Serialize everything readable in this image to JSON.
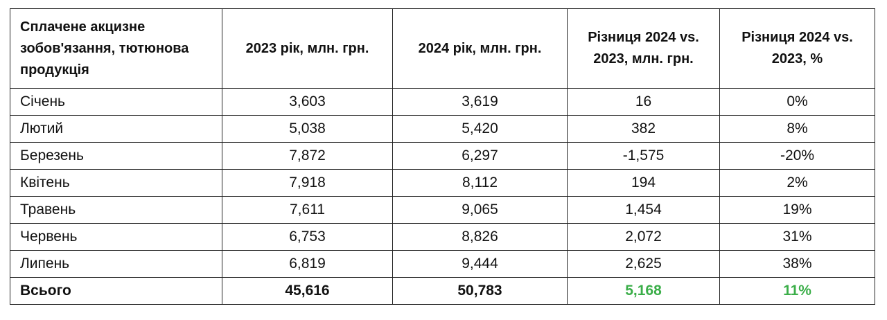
{
  "table": {
    "header": [
      "Сплачене акцизне зобов'язання, тютюнова продукція",
      "2023 рік, млн. грн.",
      "2024 рік,  млн. грн.",
      "Різниця 2024 vs. 2023, млн. грн.",
      "Різниця 2024 vs. 2023, %"
    ],
    "rows": [
      [
        "Січень",
        "3,603",
        "3,619",
        "16",
        "0%"
      ],
      [
        "Лютий",
        "5,038",
        "5,420",
        "382",
        "8%"
      ],
      [
        "Березень",
        "7,872",
        "6,297",
        "-1,575",
        "-20%"
      ],
      [
        "Квітень",
        "7,918",
        "8,112",
        "194",
        "2%"
      ],
      [
        "Травень",
        "7,611",
        "9,065",
        "1,454",
        "19%"
      ],
      [
        "Червень",
        "6,753",
        "8,826",
        "2,072",
        "31%"
      ],
      [
        "Липень",
        "6,819",
        "9,444",
        "2,625",
        "38%"
      ]
    ],
    "total": [
      "Всього",
      "45,616",
      "50,783",
      "5,168",
      "11%"
    ]
  }
}
